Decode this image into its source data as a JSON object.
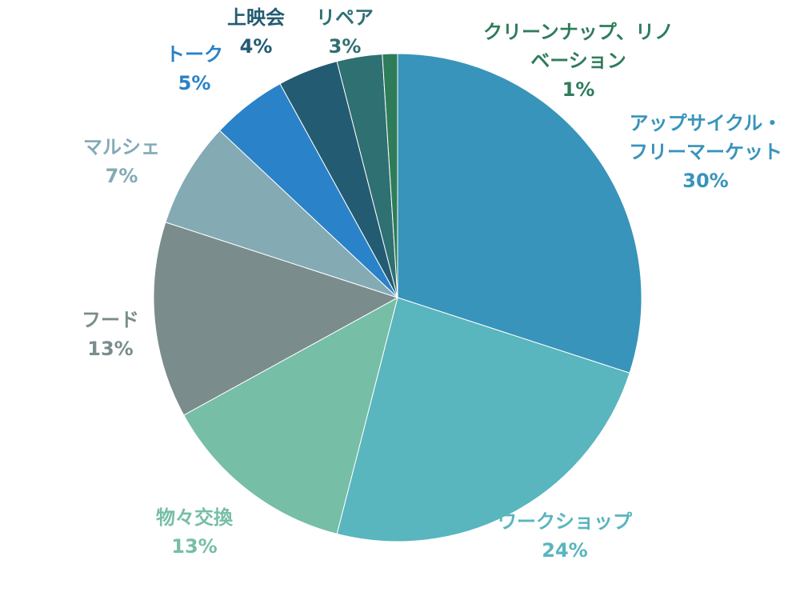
{
  "chart_data": {
    "type": "pie",
    "slices": [
      {
        "label_lines": [
          "アップサイクル・",
          "フリーマーケット"
        ],
        "value_label": "30%",
        "value": 30,
        "color": "#3894BA"
      },
      {
        "label_lines": [
          "ワークショップ"
        ],
        "value_label": "24%",
        "value": 24,
        "color": "#59B5BE"
      },
      {
        "label_lines": [
          "物々交換"
        ],
        "value_label": "13%",
        "value": 13,
        "color": "#76BEA6"
      },
      {
        "label_lines": [
          "フード"
        ],
        "value_label": "13%",
        "value": 13,
        "color": "#7A8C8C"
      },
      {
        "label_lines": [
          "マルシェ"
        ],
        "value_label": "7%",
        "value": 7,
        "color": "#84AAB4"
      },
      {
        "label_lines": [
          "トーク"
        ],
        "value_label": "5%",
        "value": 5,
        "color": "#2A82C8"
      },
      {
        "label_lines": [
          "上映会"
        ],
        "value_label": "4%",
        "value": 4,
        "color": "#235B72"
      },
      {
        "label_lines": [
          "リペア"
        ],
        "value_label": "3%",
        "value": 3,
        "color": "#2F7072"
      },
      {
        "label_lines": [
          "クリーンナップ、リノ",
          "ベーション"
        ],
        "value_label": "1%",
        "value": 1,
        "color": "#2F7C5A"
      }
    ],
    "start_angle_deg": 0,
    "direction": "clockwise",
    "legend": "none",
    "data_labels": "outside"
  }
}
